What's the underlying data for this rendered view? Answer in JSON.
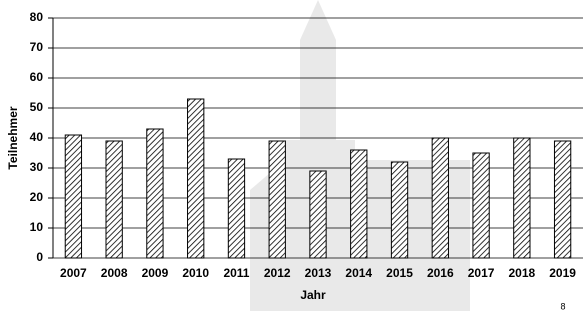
{
  "chart_data": {
    "type": "bar",
    "x_label": "Jahr",
    "y_label": "Teilnehmer",
    "categories": [
      "2007",
      "2008",
      "2009",
      "2010",
      "2011",
      "2012",
      "2013",
      "2014",
      "2015",
      "2016",
      "2017",
      "2018",
      "2019"
    ],
    "values": [
      41,
      39,
      43,
      53,
      33,
      39,
      29,
      36,
      32,
      40,
      35,
      40,
      39
    ],
    "color": "#000000",
    "ylim": [
      0,
      80
    ],
    "yticks": [
      0,
      10,
      20,
      30,
      40,
      50,
      60,
      70,
      80
    ],
    "grid": true
  },
  "page_number": "8"
}
